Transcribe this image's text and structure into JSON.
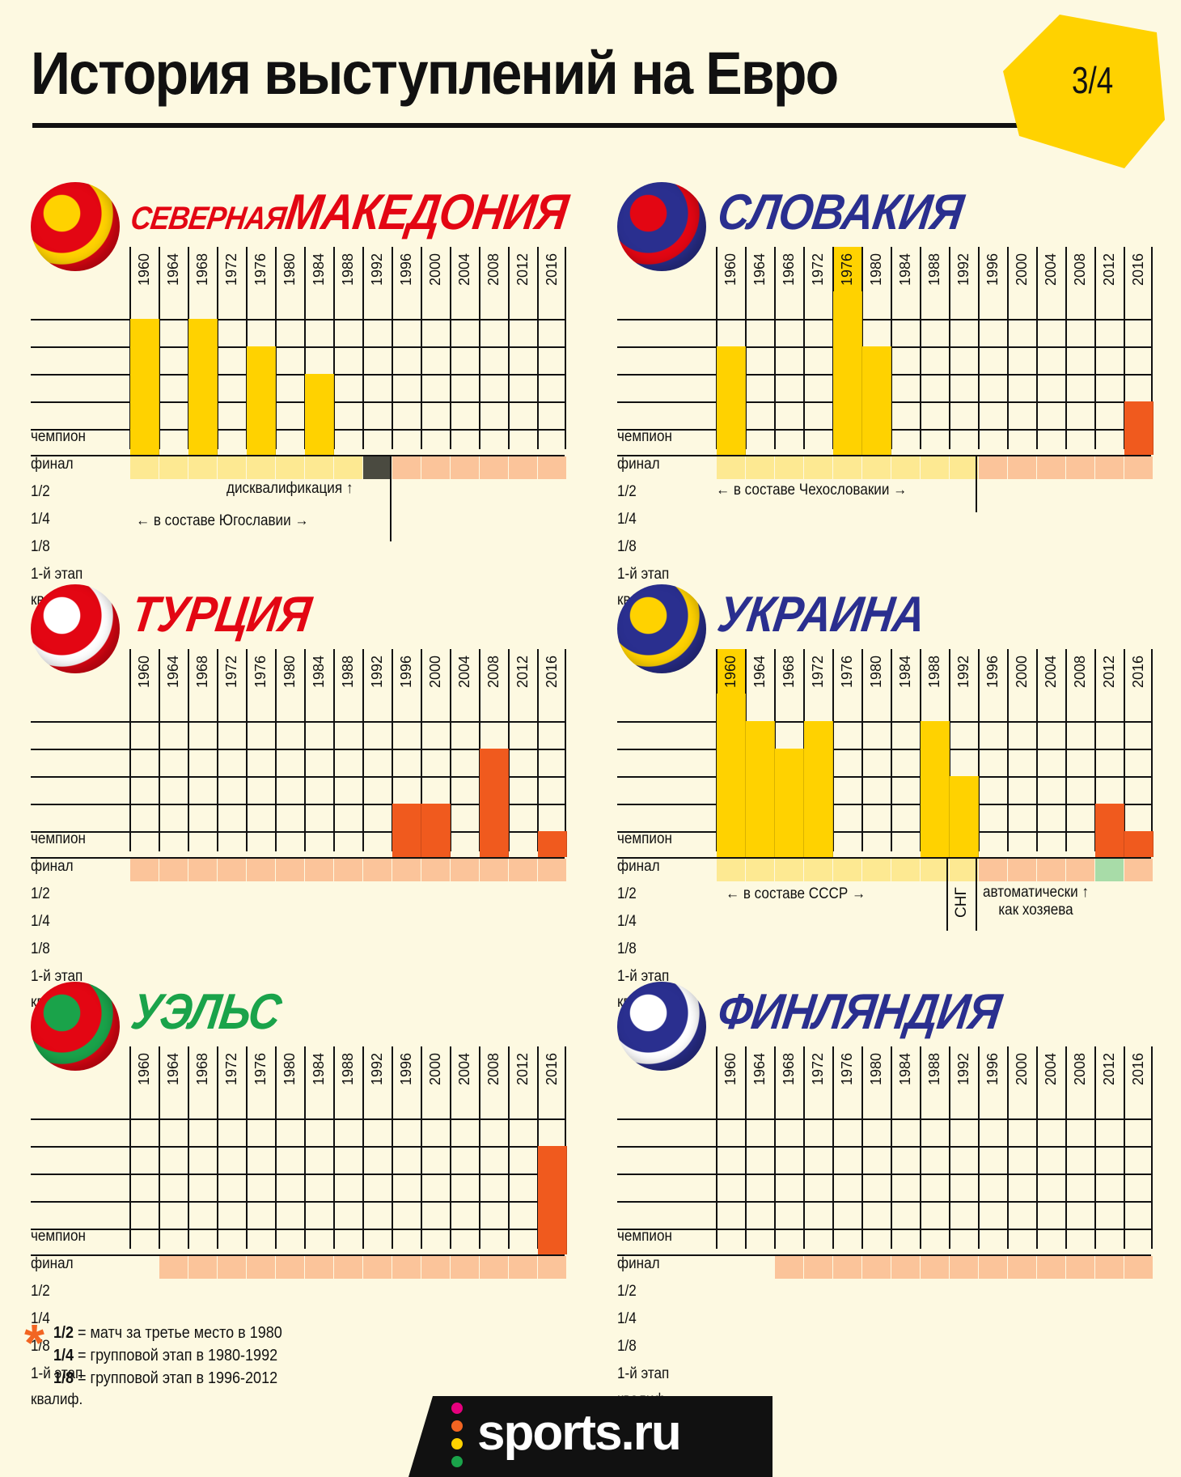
{
  "page": {
    "title": "История выступлений на Евро",
    "page_indicator": "3/4",
    "colors": {
      "background": "#fdf9e1",
      "accent_yellow": "#ffd200"
    }
  },
  "legend": {
    "marker": "*",
    "lines": [
      {
        "key": "1/2",
        "text": "= матч за третье место в 1980"
      },
      {
        "key": "1/4",
        "text": "= групповой этап в 1980-1992"
      },
      {
        "key": "1/8",
        "text": "= групповой этап в 1996-2012"
      }
    ]
  },
  "footer": {
    "logo_text": "sports.ru"
  },
  "chart_data": [
    {
      "type": "table",
      "country": "СЕВЕРНАЯ МАКЕДОНИЯ",
      "country_parts": [
        "СЕВЕРНАЯ",
        "МАКЕДОНИЯ"
      ],
      "country_color": "#e30613",
      "years": [
        "1960",
        "1964",
        "1968",
        "1972",
        "1976",
        "1980",
        "1984",
        "1988",
        "1992",
        "1996",
        "2000",
        "2004",
        "2008",
        "2012",
        "2016"
      ],
      "stages": [
        "чемпион",
        "финал",
        "1/2",
        "1/4",
        "1/8",
        "1-й этап",
        "квалиф."
      ],
      "best_stage": [
        "финал",
        null,
        "финал",
        null,
        "1/2",
        null,
        "1/4",
        null,
        null,
        null,
        null,
        null,
        null,
        null,
        null
      ],
      "qual_status": [
        "ussr_like",
        "ussr_like",
        "ussr_like",
        "ussr_like",
        "ussr_like",
        "ussr_like",
        "ussr_like",
        "ussr_like",
        "disqualified",
        "fail",
        "fail",
        "fail",
        "fail",
        "fail",
        "fail"
      ],
      "annotations": [
        {
          "text": "дисквалификация",
          "arrow": "↑"
        },
        {
          "text": "в составе Югославии",
          "arrow_left": "←",
          "arrow_right": "→"
        }
      ]
    },
    {
      "type": "table",
      "country": "СЛОВАКИЯ",
      "country_parts": [
        "СЛОВАКИЯ"
      ],
      "country_color": "#2a2f8f",
      "years": [
        "1960",
        "1964",
        "1968",
        "1972",
        "1976",
        "1980",
        "1984",
        "1988",
        "1992",
        "1996",
        "2000",
        "2004",
        "2008",
        "2012",
        "2016"
      ],
      "stages": [
        "чемпион",
        "финал",
        "1/2",
        "1/4",
        "1/8",
        "1-й этап",
        "квалиф."
      ],
      "best_stage": [
        "1/2",
        null,
        null,
        null,
        "чемпион",
        "1/2",
        null,
        null,
        null,
        null,
        null,
        null,
        null,
        null,
        "1/8"
      ],
      "qual_status": [
        "ussr_like",
        "ussr_like",
        "ussr_like",
        "ussr_like",
        "ussr_like",
        "ussr_like",
        "ussr_like",
        "ussr_like",
        "ussr_like",
        "fail",
        "fail",
        "fail",
        "fail",
        "fail",
        "fail"
      ],
      "annotations": [
        {
          "text": "в составе Чехословакии",
          "arrow_left": "←",
          "arrow_right": "→"
        }
      ]
    },
    {
      "type": "table",
      "country": "ТУРЦИЯ",
      "country_parts": [
        "ТУРЦИЯ"
      ],
      "country_color": "#e30613",
      "years": [
        "1960",
        "1964",
        "1968",
        "1972",
        "1976",
        "1980",
        "1984",
        "1988",
        "1992",
        "1996",
        "2000",
        "2004",
        "2008",
        "2012",
        "2016"
      ],
      "stages": [
        "чемпион",
        "финал",
        "1/2",
        "1/4",
        "1/8",
        "1-й этап",
        "квалиф."
      ],
      "best_stage": [
        null,
        null,
        null,
        null,
        null,
        null,
        null,
        null,
        null,
        "1/8",
        "1/8",
        null,
        "1/2",
        null,
        "1-й этап"
      ],
      "qual_status": [
        "fail",
        "fail",
        "fail",
        "fail",
        "fail",
        "fail",
        "fail",
        "fail",
        "fail",
        "fail",
        "fail",
        "fail",
        "fail",
        "fail",
        "fail"
      ],
      "annotations": []
    },
    {
      "type": "table",
      "country": "УКРАИНА",
      "country_parts": [
        "УКРАИНА"
      ],
      "country_color": "#2a2f8f",
      "years": [
        "1960",
        "1964",
        "1968",
        "1972",
        "1976",
        "1980",
        "1984",
        "1988",
        "1992",
        "1996",
        "2000",
        "2004",
        "2008",
        "2012",
        "2016"
      ],
      "stages": [
        "чемпион",
        "финал",
        "1/2",
        "1/4",
        "1/8",
        "1-й этап",
        "квалиф."
      ],
      "best_stage": [
        "чемпион",
        "финал",
        "1/2",
        "финал",
        null,
        null,
        null,
        "финал",
        "1/4",
        null,
        null,
        null,
        null,
        "1/8",
        "1-й этап"
      ],
      "qual_status": [
        "ussr_like",
        "ussr_like",
        "ussr_like",
        "ussr_like",
        "ussr_like",
        "ussr_like",
        "ussr_like",
        "ussr_like",
        "ussr_like",
        "fail",
        "fail",
        "fail",
        "fail",
        "host",
        "fail"
      ],
      "annotations": [
        {
          "text": "в составе СССР",
          "arrow_left": "←",
          "arrow_right": "→"
        },
        {
          "text": "СНГ"
        },
        {
          "text": "автоматически",
          "text2": "как хозяева",
          "arrow": "↑"
        }
      ]
    },
    {
      "type": "table",
      "country": "УЭЛЬС",
      "country_parts": [
        "УЭЛЬС"
      ],
      "country_color": "#1aa34a",
      "years": [
        "1960",
        "1964",
        "1968",
        "1972",
        "1976",
        "1980",
        "1984",
        "1988",
        "1992",
        "1996",
        "2000",
        "2004",
        "2008",
        "2012",
        "2016"
      ],
      "stages": [
        "чемпион",
        "финал",
        "1/2",
        "1/4",
        "1/8",
        "1-й этап",
        "квалиф."
      ],
      "best_stage": [
        null,
        null,
        null,
        null,
        null,
        null,
        null,
        null,
        null,
        null,
        null,
        null,
        null,
        null,
        "1/2"
      ],
      "qual_status": [
        "none",
        "fail",
        "fail",
        "fail",
        "fail",
        "fail",
        "fail",
        "fail",
        "fail",
        "fail",
        "fail",
        "fail",
        "fail",
        "fail",
        "fail"
      ],
      "annotations": []
    },
    {
      "type": "table",
      "country": "ФИНЛЯНДИЯ",
      "country_parts": [
        "ФИНЛЯНДИЯ"
      ],
      "country_color": "#2a2f8f",
      "years": [
        "1960",
        "1964",
        "1968",
        "1972",
        "1976",
        "1980",
        "1984",
        "1988",
        "1992",
        "1996",
        "2000",
        "2004",
        "2008",
        "2012",
        "2016"
      ],
      "stages": [
        "чемпион",
        "финал",
        "1/2",
        "1/4",
        "1/8",
        "1-й этап",
        "квалиф."
      ],
      "best_stage": [
        null,
        null,
        null,
        null,
        null,
        null,
        null,
        null,
        null,
        null,
        null,
        null,
        null,
        null,
        null
      ],
      "qual_status": [
        "none",
        "none",
        "fail",
        "fail",
        "fail",
        "fail",
        "fail",
        "fail",
        "fail",
        "fail",
        "fail",
        "fail",
        "fail",
        "fail",
        "fail"
      ],
      "annotations": []
    }
  ]
}
